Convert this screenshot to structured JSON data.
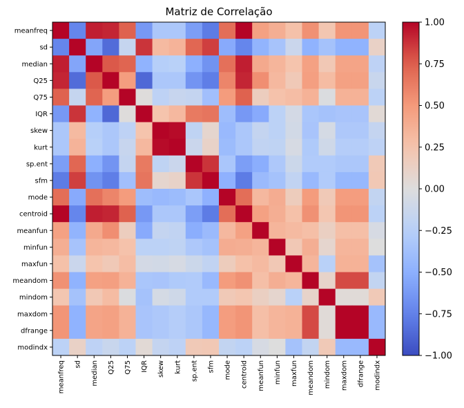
{
  "chart_data": {
    "type": "heatmap",
    "title": "Matriz de Correlação",
    "xlabel": "",
    "ylabel": "",
    "colormap": "coolwarm",
    "vmin": -1.0,
    "vmax": 1.0,
    "colorbar_ticks": [
      1.0,
      0.75,
      0.5,
      0.25,
      0.0,
      -0.25,
      -0.5,
      -0.75,
      -1.0
    ],
    "colorbar_tick_labels": [
      "1.00",
      "0.75",
      "0.50",
      "0.25",
      "0.00",
      "−0.25",
      "−0.50",
      "−0.75",
      "−1.00"
    ],
    "labels": [
      "meanfreq",
      "sd",
      "median",
      "Q25",
      "Q75",
      "IQR",
      "skew",
      "kurt",
      "sp.ent",
      "sfm",
      "mode",
      "centroid",
      "meanfun",
      "minfun",
      "maxfun",
      "meandom",
      "mindom",
      "maxdom",
      "dfrange",
      "modindx"
    ],
    "matrix": [
      [
        1.0,
        -0.73,
        0.93,
        0.91,
        0.74,
        -0.63,
        -0.32,
        -0.32,
        -0.6,
        -0.78,
        0.69,
        1.0,
        0.46,
        0.38,
        0.27,
        0.54,
        0.23,
        0.52,
        0.52,
        -0.22
      ],
      [
        -0.73,
        1.0,
        -0.56,
        -0.85,
        -0.16,
        0.87,
        0.31,
        0.35,
        0.72,
        0.84,
        -0.53,
        -0.73,
        -0.47,
        -0.35,
        -0.13,
        -0.48,
        -0.36,
        -0.48,
        -0.48,
        0.12
      ],
      [
        0.93,
        -0.56,
        1.0,
        0.77,
        0.73,
        -0.48,
        -0.26,
        -0.24,
        -0.5,
        -0.66,
        0.68,
        0.93,
        0.41,
        0.34,
        0.25,
        0.46,
        0.21,
        0.44,
        0.44,
        -0.21
      ],
      [
        0.91,
        -0.85,
        0.77,
        1.0,
        0.48,
        -0.87,
        -0.32,
        -0.32,
        -0.65,
        -0.77,
        0.59,
        0.91,
        0.55,
        0.32,
        0.2,
        0.47,
        0.3,
        0.46,
        0.46,
        -0.14
      ],
      [
        0.74,
        -0.16,
        0.73,
        0.48,
        1.0,
        0.01,
        -0.21,
        -0.15,
        -0.17,
        -0.38,
        0.49,
        0.74,
        0.16,
        0.26,
        0.29,
        0.36,
        -0.02,
        0.36,
        0.36,
        -0.22
      ],
      [
        -0.63,
        0.87,
        -0.48,
        -0.87,
        0.01,
        1.0,
        0.25,
        0.32,
        0.64,
        0.66,
        -0.4,
        -0.63,
        -0.53,
        -0.22,
        -0.07,
        -0.33,
        -0.36,
        -0.34,
        -0.34,
        0.04
      ],
      [
        -0.32,
        0.31,
        -0.26,
        -0.32,
        -0.21,
        0.25,
        1.0,
        0.98,
        -0.2,
        0.08,
        -0.43,
        -0.32,
        -0.17,
        -0.22,
        -0.08,
        -0.34,
        -0.06,
        -0.31,
        -0.31,
        -0.17
      ],
      [
        -0.32,
        0.35,
        -0.24,
        -0.32,
        -0.15,
        0.32,
        0.98,
        1.0,
        -0.13,
        0.11,
        -0.41,
        -0.32,
        -0.19,
        -0.2,
        -0.05,
        -0.3,
        -0.1,
        -0.27,
        -0.27,
        -0.21
      ],
      [
        -0.6,
        0.72,
        -0.5,
        -0.65,
        -0.17,
        0.64,
        -0.2,
        -0.13,
        1.0,
        0.87,
        -0.33,
        -0.6,
        -0.51,
        -0.31,
        -0.12,
        -0.29,
        -0.29,
        -0.32,
        -0.32,
        0.2
      ],
      [
        -0.78,
        0.84,
        -0.66,
        -0.77,
        -0.38,
        0.66,
        0.08,
        0.11,
        0.87,
        1.0,
        -0.49,
        -0.78,
        -0.42,
        -0.36,
        -0.19,
        -0.43,
        -0.29,
        -0.44,
        -0.44,
        0.21
      ],
      [
        0.69,
        -0.53,
        0.68,
        0.59,
        0.49,
        -0.4,
        -0.43,
        -0.41,
        -0.33,
        -0.49,
        1.0,
        0.69,
        0.32,
        0.39,
        0.17,
        0.49,
        0.2,
        0.48,
        0.48,
        -0.18
      ],
      [
        1.0,
        -0.73,
        0.93,
        0.91,
        0.74,
        -0.63,
        -0.32,
        -0.32,
        -0.6,
        -0.78,
        0.69,
        1.0,
        0.46,
        0.38,
        0.27,
        0.54,
        0.23,
        0.52,
        0.52,
        -0.22
      ],
      [
        0.46,
        -0.47,
        0.41,
        0.55,
        0.16,
        -0.53,
        -0.17,
        -0.19,
        -0.51,
        -0.42,
        0.32,
        0.46,
        1.0,
        0.34,
        0.31,
        0.28,
        0.14,
        0.28,
        0.28,
        -0.05
      ],
      [
        0.38,
        -0.35,
        0.34,
        0.32,
        0.26,
        -0.22,
        -0.22,
        -0.2,
        -0.31,
        -0.36,
        0.39,
        0.38,
        0.34,
        1.0,
        0.21,
        0.38,
        0.08,
        0.34,
        0.34,
        0.0
      ],
      [
        0.27,
        -0.13,
        0.25,
        0.2,
        0.29,
        -0.07,
        -0.08,
        -0.05,
        -0.12,
        -0.19,
        0.17,
        0.27,
        0.31,
        0.21,
        1.0,
        0.34,
        -0.24,
        0.36,
        0.36,
        -0.36
      ],
      [
        0.54,
        -0.48,
        0.46,
        0.47,
        0.36,
        -0.33,
        -0.34,
        -0.3,
        -0.29,
        -0.43,
        0.49,
        0.54,
        0.28,
        0.38,
        0.34,
        1.0,
        0.1,
        0.81,
        0.81,
        -0.18
      ],
      [
        0.23,
        -0.36,
        0.21,
        0.3,
        -0.02,
        -0.36,
        -0.06,
        -0.1,
        -0.29,
        -0.29,
        0.2,
        0.23,
        0.14,
        0.08,
        -0.24,
        0.1,
        1.0,
        0.03,
        0.03,
        0.2
      ],
      [
        0.52,
        -0.48,
        0.44,
        0.46,
        0.36,
        -0.34,
        -0.31,
        -0.27,
        -0.32,
        -0.44,
        0.48,
        0.52,
        0.28,
        0.34,
        0.36,
        0.81,
        0.03,
        1.0,
        1.0,
        -0.43
      ],
      [
        0.52,
        -0.48,
        0.44,
        0.46,
        0.36,
        -0.34,
        -0.31,
        -0.27,
        -0.32,
        -0.44,
        0.48,
        0.52,
        0.28,
        0.34,
        0.36,
        0.81,
        0.03,
        1.0,
        1.0,
        -0.43
      ],
      [
        -0.22,
        0.12,
        -0.21,
        -0.14,
        -0.22,
        0.04,
        -0.17,
        -0.21,
        0.2,
        0.21,
        -0.18,
        -0.22,
        -0.05,
        0.0,
        -0.36,
        -0.18,
        0.2,
        -0.43,
        -0.43,
        1.0
      ]
    ]
  }
}
